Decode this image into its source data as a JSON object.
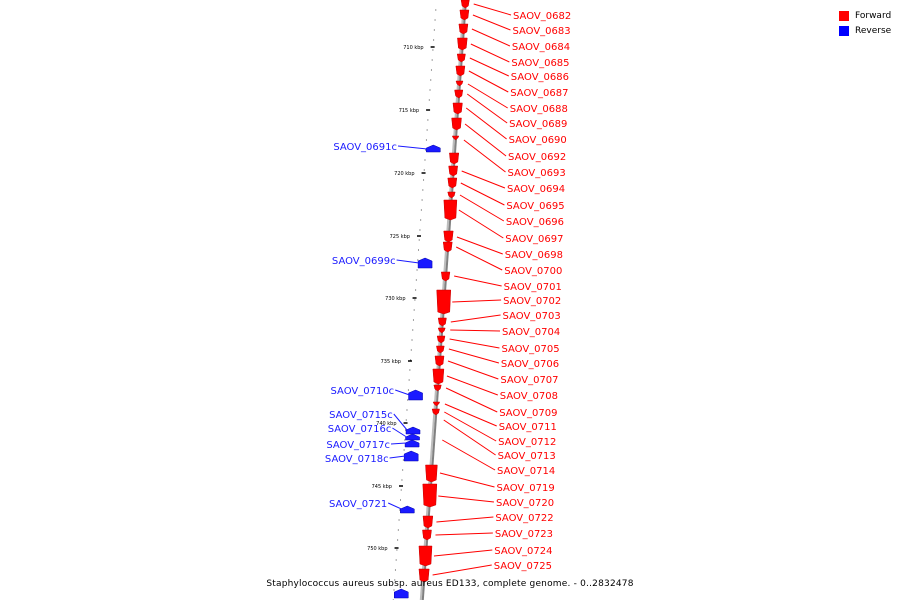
{
  "caption": "Staphylococcus aureus subsp. aureus ED133, complete genome. - 0..2832478",
  "legend": [
    {
      "label": "Forward",
      "color": "#ff0000"
    },
    {
      "label": "Reverse",
      "color": "#0000ff"
    }
  ],
  "colors": {
    "forward": "#ff0000",
    "reverse": "#1a1aff",
    "backbone": "#808080"
  },
  "scale_labels": [
    "710 kbp",
    "715 kbp",
    "720 kbp",
    "725 kbp",
    "730 kbp",
    "735 kbp",
    "740 kbp",
    "745 kbp",
    "750 kbp"
  ],
  "forward_genes": [
    "SAOV_0682",
    "SAOV_0683",
    "SAOV_0684",
    "SAOV_0685",
    "SAOV_0686",
    "SAOV_0687",
    "SAOV_0688",
    "SAOV_0689",
    "SAOV_0690",
    "SAOV_0692",
    "SAOV_0693",
    "SAOV_0694",
    "SAOV_0695",
    "SAOV_0696",
    "SAOV_0697",
    "SAOV_0698",
    "SAOV_0700",
    "SAOV_0701",
    "SAOV_0702",
    "SAOV_0703",
    "SAOV_0704",
    "SAOV_0705",
    "SAOV_0706",
    "SAOV_0707",
    "SAOV_0708",
    "SAOV_0709",
    "SAOV_0711",
    "SAOV_0712",
    "SAOV_0713",
    "SAOV_0714",
    "SAOV_0719",
    "SAOV_0720",
    "SAOV_0722",
    "SAOV_0723",
    "SAOV_0724",
    "SAOV_0725"
  ],
  "reverse_genes": [
    "SAOV_0691c",
    "SAOV_0699c",
    "SAOV_0710c",
    "SAOV_0715c",
    "SAOV_0716c",
    "SAOV_0717c",
    "SAOV_0718c",
    "SAOV_0721"
  ]
}
